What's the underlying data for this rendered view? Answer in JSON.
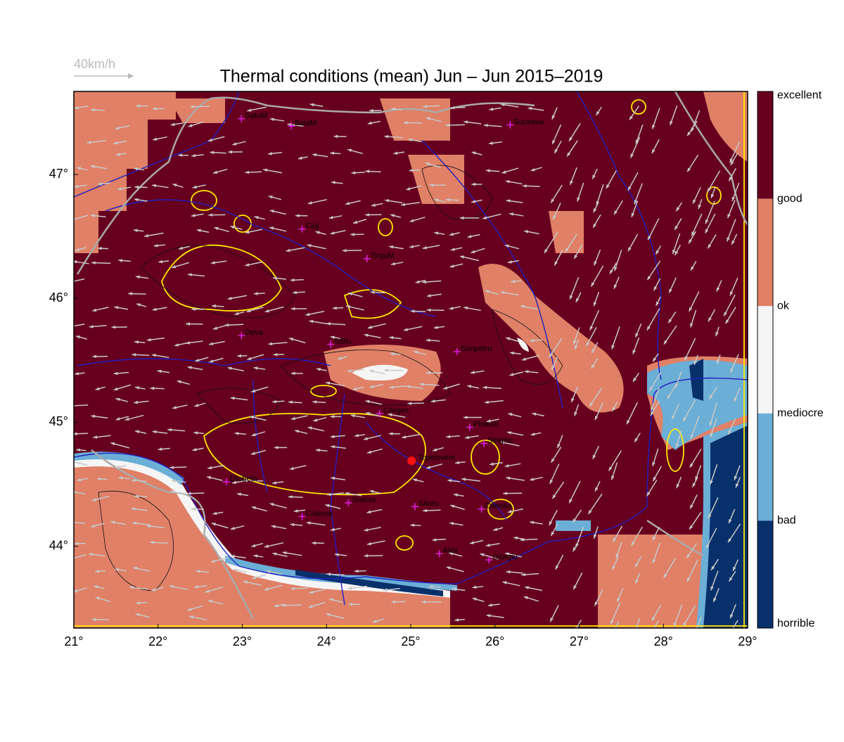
{
  "chart_data": {
    "type": "map",
    "title": "Thermal conditions (mean) Jun – Jun  2015–2019",
    "wind_scale": "40km/h",
    "xlim": [
      21,
      29
    ],
    "ylim": [
      43.34,
      47.67
    ],
    "xticks": [
      {
        "value": 21,
        "label": "21°"
      },
      {
        "value": 22,
        "label": "22°"
      },
      {
        "value": 23,
        "label": "23°"
      },
      {
        "value": 24,
        "label": "24°"
      },
      {
        "value": 25,
        "label": "25°"
      },
      {
        "value": 26,
        "label": "26°"
      },
      {
        "value": 27,
        "label": "27°"
      },
      {
        "value": 28,
        "label": "28°"
      },
      {
        "value": 29,
        "label": "29°"
      }
    ],
    "yticks": [
      {
        "value": 44,
        "label": "44°"
      },
      {
        "value": 45,
        "label": "45°"
      },
      {
        "value": 46,
        "label": "46°"
      },
      {
        "value": 47,
        "label": "47°"
      }
    ],
    "colorbar": {
      "labels": [
        "excellent",
        "good",
        "ok",
        "mediocre",
        "bad",
        "horrible"
      ],
      "colors": [
        "#67001f",
        "#e08066",
        "#f5f5f5",
        "#6baed6",
        "#08306b"
      ]
    },
    "cities": [
      {
        "name": "SatuM",
        "lon": 22.99,
        "lat": 47.45
      },
      {
        "name": "BaiaM",
        "lon": 23.58,
        "lat": 47.39
      },
      {
        "name": "Suceava",
        "lon": 26.18,
        "lat": 47.4
      },
      {
        "name": "Cluj",
        "lon": 23.71,
        "lat": 46.56
      },
      {
        "name": "TirguM",
        "lon": 24.48,
        "lat": 46.32
      },
      {
        "name": "Deva",
        "lon": 22.99,
        "lat": 45.7
      },
      {
        "name": "Sibiu",
        "lon": 24.05,
        "lat": 45.63
      },
      {
        "name": "Sanpetru",
        "lon": 25.55,
        "lat": 45.57
      },
      {
        "name": "CArges",
        "lon": 24.63,
        "lat": 45.07
      },
      {
        "name": "Ploiesti",
        "lon": 25.7,
        "lat": 44.96
      },
      {
        "name": "Strejnic",
        "lon": 25.87,
        "lat": 44.83
      },
      {
        "name": "Drobeta",
        "lon": 22.81,
        "lat": 44.52
      },
      {
        "name": "Slatina",
        "lon": 24.26,
        "lat": 44.35
      },
      {
        "name": "Craiova",
        "lon": 23.71,
        "lat": 44.24
      },
      {
        "name": "Sitaru",
        "lon": 25.05,
        "lat": 44.32
      },
      {
        "name": "Oltenita",
        "lon": 25.84,
        "lat": 44.3
      },
      {
        "name": "Alex",
        "lon": 25.34,
        "lat": 43.94
      },
      {
        "name": "Giurgiu",
        "lon": 25.93,
        "lat": 43.89
      }
    ],
    "site": {
      "name": "Topoloveni",
      "lon": 25.01,
      "lat": 44.69
    }
  }
}
